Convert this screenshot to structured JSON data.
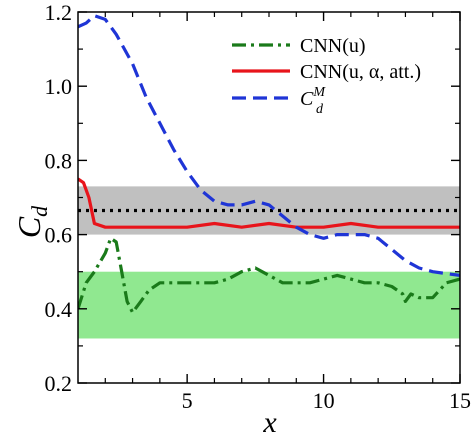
{
  "chart_data": {
    "type": "line",
    "xlabel": "x",
    "ylabel": "C_d",
    "xlim": [
      1,
      15
    ],
    "ylim": [
      0.2,
      1.2
    ],
    "xticks": [
      5,
      10,
      15
    ],
    "yticks": [
      0.2,
      0.4,
      0.6,
      0.8,
      1.0,
      1.2
    ],
    "xtick_labels": [
      "5",
      "10",
      "15"
    ],
    "ytick_labels": [
      "0.2",
      "0.4",
      "0.6",
      "0.8",
      "1.0",
      "1.2"
    ],
    "grid": false,
    "legend_position": "top-right",
    "bands": [
      {
        "y": [
          0.6,
          0.73
        ],
        "color": "#c0c0c0"
      },
      {
        "y": [
          0.32,
          0.5
        ],
        "color": "#90e890"
      }
    ],
    "reference_line": {
      "y": 0.665,
      "color": "#000000",
      "style": "dotted"
    },
    "series": [
      {
        "name": "CNN(u)",
        "color": "#1a7a1a",
        "style": "dashdot",
        "x": [
          1.0,
          1.3,
          1.6,
          2.0,
          2.2,
          2.4,
          2.6,
          2.8,
          3.0,
          3.3,
          3.6,
          4.0,
          4.5,
          5.0,
          5.5,
          6.0,
          6.5,
          7.0,
          7.5,
          8.0,
          8.5,
          9.0,
          9.5,
          10.0,
          10.5,
          11.0,
          11.5,
          12.0,
          12.5,
          12.9,
          13.0,
          13.2,
          13.5,
          14.0,
          14.5,
          15.0
        ],
        "y": [
          0.4,
          0.47,
          0.5,
          0.55,
          0.59,
          0.58,
          0.5,
          0.42,
          0.39,
          0.42,
          0.45,
          0.47,
          0.47,
          0.47,
          0.47,
          0.47,
          0.48,
          0.5,
          0.51,
          0.49,
          0.47,
          0.47,
          0.47,
          0.48,
          0.49,
          0.48,
          0.47,
          0.47,
          0.46,
          0.44,
          0.42,
          0.44,
          0.43,
          0.43,
          0.47,
          0.48
        ]
      },
      {
        "name": "CNN(u, α, att.)",
        "color": "#e8141b",
        "style": "solid",
        "x": [
          1.0,
          1.2,
          1.4,
          1.6,
          2.0,
          2.5,
          3.0,
          4.0,
          5.0,
          6.0,
          7.0,
          8.0,
          9.0,
          10.0,
          11.0,
          12.0,
          13.0,
          13.5,
          14.0,
          15.0
        ],
        "y": [
          0.75,
          0.74,
          0.7,
          0.63,
          0.62,
          0.62,
          0.62,
          0.62,
          0.62,
          0.63,
          0.62,
          0.63,
          0.62,
          0.62,
          0.63,
          0.62,
          0.62,
          0.62,
          0.62,
          0.62
        ]
      },
      {
        "name": "C_d^M",
        "color": "#1f35d6",
        "style": "dashed",
        "x": [
          1.0,
          1.3,
          1.6,
          2.0,
          2.4,
          3.0,
          3.5,
          4.0,
          4.5,
          5.0,
          5.5,
          6.0,
          6.5,
          7.0,
          7.5,
          8.0,
          8.5,
          9.0,
          9.5,
          10.0,
          10.5,
          11.0,
          11.5,
          12.0,
          12.5,
          13.0,
          13.5,
          14.0,
          14.5,
          15.0
        ],
        "y": [
          1.16,
          1.17,
          1.19,
          1.18,
          1.14,
          1.06,
          0.97,
          0.9,
          0.83,
          0.77,
          0.72,
          0.69,
          0.68,
          0.68,
          0.69,
          0.68,
          0.65,
          0.62,
          0.6,
          0.59,
          0.6,
          0.6,
          0.6,
          0.59,
          0.56,
          0.53,
          0.51,
          0.5,
          0.495,
          0.49
        ]
      }
    ]
  }
}
